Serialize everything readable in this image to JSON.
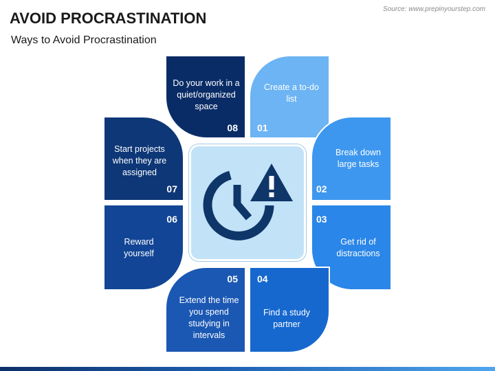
{
  "header": {
    "title": "AVOID PROCRASTINATION",
    "subtitle": "Ways to Avoid Procrastination",
    "source": "Source: www.prepinyourstep.com"
  },
  "center": {
    "icon": "clock-warning-icon"
  },
  "steps": [
    {
      "num": "01",
      "text": "Create a to-do list",
      "color": "#6cb4f3"
    },
    {
      "num": "02",
      "text": "Break down large tasks",
      "color": "#3d97ee"
    },
    {
      "num": "03",
      "text": "Get rid of distractions",
      "color": "#2a86e8"
    },
    {
      "num": "04",
      "text": "Find a study partner",
      "color": "#1668cf"
    },
    {
      "num": "05",
      "text": "Extend the time you spend studying in intervals",
      "color": "#1b58b3"
    },
    {
      "num": "06",
      "text": "Reward yourself",
      "color": "#124595"
    },
    {
      "num": "07",
      "text": "Start projects when they are assigned",
      "color": "#0e3777"
    },
    {
      "num": "08",
      "text": "Do your work in a quiet/organized space",
      "color": "#0a2c66"
    }
  ],
  "colors": {
    "center_fill": "#c2e2f8",
    "icon": "#0e3668"
  }
}
